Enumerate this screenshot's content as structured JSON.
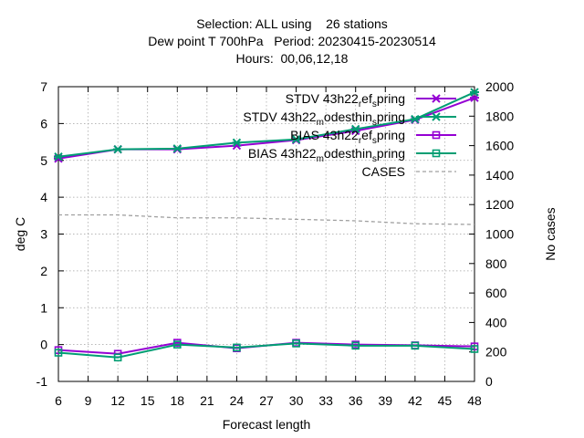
{
  "chart_data": {
    "type": "line",
    "title_lines": [
      "Selection: ALL using    26 stations",
      "Dew point T 700hPa   Period: 20230415-20230514",
      "Hours:  00,06,12,18"
    ],
    "xlabel": "Forecast length",
    "ylabel": "deg C",
    "y2label": "No cases",
    "x_ticks": [
      6,
      9,
      12,
      15,
      18,
      21,
      24,
      27,
      30,
      33,
      36,
      39,
      42,
      45,
      48
    ],
    "y_ticks": [
      -1,
      0,
      1,
      2,
      3,
      4,
      5,
      6,
      7
    ],
    "y2_ticks": [
      0,
      200,
      400,
      600,
      800,
      1000,
      1200,
      1400,
      1600,
      1800,
      2000
    ],
    "xlim": [
      6,
      48
    ],
    "ylim": [
      -1,
      7
    ],
    "y2lim": [
      0,
      2000
    ],
    "grid": true,
    "legend_position": "top-right",
    "x": [
      6,
      12,
      18,
      24,
      30,
      36,
      42,
      48
    ],
    "series": [
      {
        "name": "STDV 43h22_ref_spring",
        "legend_parts": [
          "STDV 43h22",
          "r",
          "ef",
          "s",
          "pring"
        ],
        "color": "#9400d3",
        "marker": "x-star",
        "axis": "y",
        "values": [
          5.05,
          5.3,
          5.3,
          5.4,
          5.55,
          5.8,
          6.1,
          6.7
        ]
      },
      {
        "name": "STDV 43h22_modesthin_spring",
        "legend_parts": [
          "STDV 43h22",
          "m",
          "odesthin",
          "s",
          "pring"
        ],
        "color": "#009e73",
        "marker": "x-star",
        "axis": "y",
        "values": [
          5.1,
          5.3,
          5.32,
          5.48,
          5.57,
          5.85,
          6.12,
          6.85
        ]
      },
      {
        "name": "BIAS 43h22_ref_spring",
        "legend_parts": [
          "BIAS 43h22",
          "r",
          "ef",
          "s",
          "pring"
        ],
        "color": "#9400d3",
        "marker": "square",
        "axis": "y",
        "values": [
          -0.15,
          -0.25,
          0.05,
          -0.1,
          0.05,
          0.0,
          -0.02,
          -0.05
        ]
      },
      {
        "name": "BIAS 43h22_modesthin_spring",
        "legend_parts": [
          "BIAS 43h22",
          "m",
          "odesthin",
          "s",
          "pring"
        ],
        "color": "#009e73",
        "marker": "square",
        "axis": "y",
        "values": [
          -0.22,
          -0.35,
          0.0,
          -0.08,
          0.03,
          -0.03,
          -0.03,
          -0.12
        ]
      },
      {
        "name": "CASES",
        "legend_parts": [
          "CASES"
        ],
        "color": "#a0a0a0",
        "marker": "none",
        "dash": true,
        "axis": "y2",
        "values": [
          1130,
          1130,
          1110,
          1110,
          1100,
          1090,
          1070,
          1065
        ]
      }
    ]
  }
}
